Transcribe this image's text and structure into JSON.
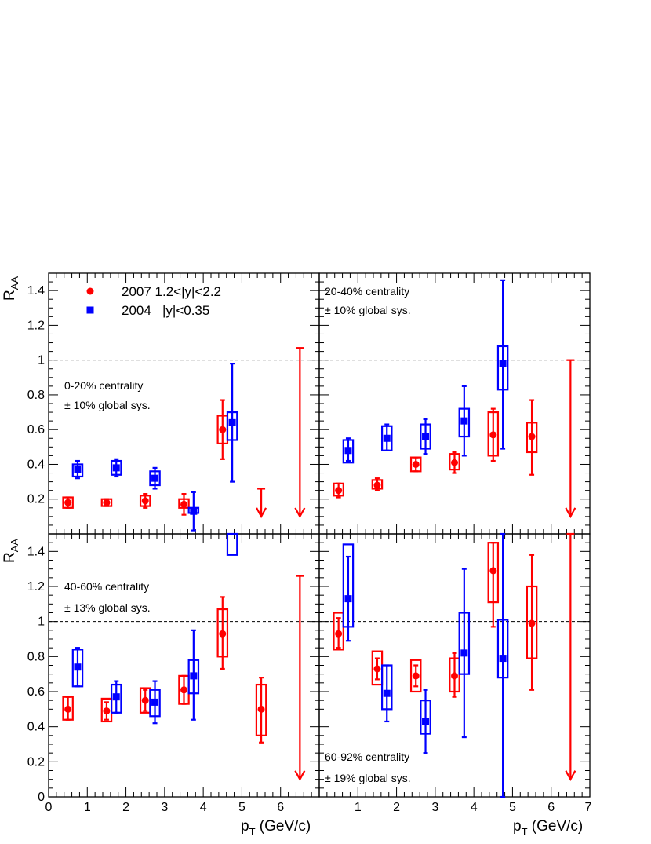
{
  "chart_data": {
    "type": "scatter",
    "colors": {
      "series_2007": "#ff0000",
      "series_2004": "#0000ff",
      "frame": "#000000"
    },
    "legend": {
      "placement": "top-left of first panel",
      "entries": [
        {
          "label": "2007 1.2<|y|<2.2",
          "marker": "circle",
          "color": "#ff0000"
        },
        {
          "label": "2004   |y|<0.35",
          "marker": "square",
          "color": "#0000ff"
        }
      ]
    },
    "ylabel": {
      "main": "R",
      "sub": "AA"
    },
    "xlabel": {
      "main": "p",
      "sub": "T",
      "unit": " (GeV/c)"
    },
    "reference_line": 1,
    "panels": [
      {
        "id": "top-left",
        "centrality": "0-20% centrality",
        "global_sys": "± 10% global sys.",
        "xlim": [
          0,
          7
        ],
        "ylim": [
          0,
          1.5
        ],
        "x_ticks": [],
        "y_ticks": [
          "0.2",
          "0.4",
          "0.6",
          "0.8",
          "1",
          "1.2",
          "1.4"
        ],
        "series_2007": [
          {
            "x": 0.5,
            "y": 0.18,
            "lo": 0.15,
            "hi": 0.21,
            "box": [
              0.15,
              0.21
            ],
            "box_w": 0.25
          },
          {
            "x": 1.5,
            "y": 0.18,
            "lo": 0.16,
            "hi": 0.2,
            "box": [
              0.16,
              0.2
            ],
            "box_w": 0.25
          },
          {
            "x": 2.5,
            "y": 0.19,
            "lo": 0.15,
            "hi": 0.23,
            "box": [
              0.16,
              0.22
            ],
            "box_w": 0.25
          },
          {
            "x": 3.5,
            "y": 0.17,
            "lo": 0.11,
            "hi": 0.23,
            "box": [
              0.15,
              0.2
            ],
            "box_w": 0.25
          },
          {
            "x": 4.5,
            "y": 0.6,
            "lo": 0.43,
            "hi": 0.77,
            "box": [
              0.52,
              0.68
            ],
            "box_w": 0.25
          }
        ],
        "series_2004": [
          {
            "x": 0.75,
            "y": 0.37,
            "lo": 0.32,
            "hi": 0.42,
            "box": [
              0.33,
              0.4
            ],
            "box_w": 0.25
          },
          {
            "x": 1.75,
            "y": 0.38,
            "lo": 0.33,
            "hi": 0.43,
            "box": [
              0.34,
              0.42
            ],
            "box_w": 0.25
          },
          {
            "x": 2.75,
            "y": 0.32,
            "lo": 0.26,
            "hi": 0.38,
            "box": [
              0.28,
              0.36
            ],
            "box_w": 0.25
          },
          {
            "x": 3.75,
            "y": 0.13,
            "lo": 0.02,
            "hi": 0.24,
            "box": [
              0.12,
              0.15
            ],
            "box_w": 0.25
          },
          {
            "x": 4.75,
            "y": 0.64,
            "lo": 0.3,
            "hi": 0.98,
            "box": [
              0.54,
              0.7
            ],
            "box_w": 0.25
          }
        ],
        "limits_2007": [
          {
            "x": 5.5,
            "top": 0.26,
            "bottom": 0.1
          },
          {
            "x": 6.5,
            "top": 1.07,
            "bottom": 0.1
          }
        ]
      },
      {
        "id": "top-right",
        "centrality": "20-40% centrality",
        "global_sys": "± 10% global sys.",
        "xlim": [
          0,
          7
        ],
        "ylim": [
          0,
          1.5
        ],
        "x_ticks": [],
        "y_ticks": [],
        "series_2007": [
          {
            "x": 0.5,
            "y": 0.25,
            "lo": 0.21,
            "hi": 0.29,
            "box": [
              0.22,
              0.29
            ],
            "box_w": 0.25
          },
          {
            "x": 1.5,
            "y": 0.28,
            "lo": 0.25,
            "hi": 0.32,
            "box": [
              0.26,
              0.31
            ],
            "box_w": 0.25
          },
          {
            "x": 2.5,
            "y": 0.4,
            "lo": 0.36,
            "hi": 0.44,
            "box": [
              0.36,
              0.44
            ],
            "box_w": 0.25
          },
          {
            "x": 3.5,
            "y": 0.41,
            "lo": 0.35,
            "hi": 0.47,
            "box": [
              0.37,
              0.46
            ],
            "box_w": 0.25
          },
          {
            "x": 4.5,
            "y": 0.57,
            "lo": 0.42,
            "hi": 0.72,
            "box": [
              0.45,
              0.7
            ],
            "box_w": 0.25
          },
          {
            "x": 5.5,
            "y": 0.56,
            "lo": 0.34,
            "hi": 0.77,
            "box": [
              0.47,
              0.64
            ],
            "box_w": 0.25
          }
        ],
        "series_2004": [
          {
            "x": 0.75,
            "y": 0.48,
            "lo": 0.42,
            "hi": 0.55,
            "box": [
              0.41,
              0.54
            ],
            "box_w": 0.25
          },
          {
            "x": 1.75,
            "y": 0.55,
            "lo": 0.48,
            "hi": 0.63,
            "box": [
              0.48,
              0.62
            ],
            "box_w": 0.25
          },
          {
            "x": 2.75,
            "y": 0.56,
            "lo": 0.46,
            "hi": 0.66,
            "box": [
              0.49,
              0.63
            ],
            "box_w": 0.25
          },
          {
            "x": 3.75,
            "y": 0.65,
            "lo": 0.45,
            "hi": 0.85,
            "box": [
              0.56,
              0.72
            ],
            "box_w": 0.25
          },
          {
            "x": 4.75,
            "y": 0.98,
            "lo": 0.49,
            "hi": 1.46,
            "box": [
              0.83,
              1.08
            ],
            "box_w": 0.25
          }
        ],
        "limits_2007": [
          {
            "x": 6.5,
            "top": 1.0,
            "bottom": 0.1
          }
        ]
      },
      {
        "id": "bottom-left",
        "centrality": "40-60% centrality",
        "global_sys": "± 13% global sys.",
        "xlim": [
          0,
          7
        ],
        "ylim": [
          0,
          1.5
        ],
        "x_ticks": [
          "0",
          "1",
          "2",
          "3",
          "4",
          "5",
          "6"
        ],
        "y_ticks": [
          "0",
          "0.2",
          "0.4",
          "0.6",
          "0.8",
          "1",
          "1.2",
          "1.4"
        ],
        "series_2007": [
          {
            "x": 0.5,
            "y": 0.5,
            "lo": 0.44,
            "hi": 0.57,
            "box": [
              0.44,
              0.57
            ],
            "box_w": 0.25
          },
          {
            "x": 1.5,
            "y": 0.49,
            "lo": 0.44,
            "hi": 0.54,
            "box": [
              0.43,
              0.56
            ],
            "box_w": 0.25
          },
          {
            "x": 2.5,
            "y": 0.55,
            "lo": 0.49,
            "hi": 0.61,
            "box": [
              0.48,
              0.62
            ],
            "box_w": 0.25
          },
          {
            "x": 3.5,
            "y": 0.61,
            "lo": 0.53,
            "hi": 0.69,
            "box": [
              0.53,
              0.69
            ],
            "box_w": 0.25
          },
          {
            "x": 4.5,
            "y": 0.93,
            "lo": 0.73,
            "hi": 1.14,
            "box": [
              0.8,
              1.07
            ],
            "box_w": 0.25
          },
          {
            "x": 5.5,
            "y": 0.5,
            "lo": 0.31,
            "hi": 0.68,
            "box": [
              0.35,
              0.64
            ],
            "box_w": 0.25
          }
        ],
        "series_2004": [
          {
            "x": 0.75,
            "y": 0.74,
            "lo": 0.63,
            "hi": 0.85,
            "box": [
              0.63,
              0.84
            ],
            "box_w": 0.25
          },
          {
            "x": 1.75,
            "y": 0.57,
            "lo": 0.48,
            "hi": 0.66,
            "box": [
              0.48,
              0.64
            ],
            "box_w": 0.25
          },
          {
            "x": 2.75,
            "y": 0.54,
            "lo": 0.42,
            "hi": 0.66,
            "box": [
              0.46,
              0.61
            ],
            "box_w": 0.25
          },
          {
            "x": 3.75,
            "y": 0.69,
            "lo": 0.44,
            "hi": 0.95,
            "box": [
              0.59,
              0.78
            ],
            "box_w": 0.25
          },
          {
            "x": 4.75,
            "y": null,
            "lo": null,
            "hi": null,
            "box": [
              1.38,
              1.5
            ],
            "box_w": 0.25
          }
        ],
        "limits_2007": [
          {
            "x": 6.5,
            "top": 1.26,
            "bottom": 0.1
          }
        ]
      },
      {
        "id": "bottom-right",
        "centrality": "60-92% centrality",
        "global_sys": "± 19% global sys.",
        "xlim": [
          0,
          7
        ],
        "ylim": [
          0,
          1.5
        ],
        "x_ticks": [
          "1",
          "2",
          "3",
          "4",
          "5",
          "6",
          "7"
        ],
        "y_ticks": [],
        "series_2007": [
          {
            "x": 0.5,
            "y": 0.93,
            "lo": 0.85,
            "hi": 1.02,
            "box": [
              0.84,
              1.05
            ],
            "box_w": 0.25
          },
          {
            "x": 1.5,
            "y": 0.73,
            "lo": 0.67,
            "hi": 0.79,
            "box": [
              0.64,
              0.83
            ],
            "box_w": 0.25
          },
          {
            "x": 2.5,
            "y": 0.69,
            "lo": 0.63,
            "hi": 0.75,
            "box": [
              0.6,
              0.78
            ],
            "box_w": 0.25
          },
          {
            "x": 3.5,
            "y": 0.69,
            "lo": 0.57,
            "hi": 0.82,
            "box": [
              0.6,
              0.79
            ],
            "box_w": 0.25
          },
          {
            "x": 4.5,
            "y": 1.29,
            "lo": 0.97,
            "hi": 1.45,
            "box": [
              1.11,
              1.45
            ],
            "box_w": 0.25
          },
          {
            "x": 5.5,
            "y": 0.99,
            "lo": 0.61,
            "hi": 1.38,
            "box": [
              0.79,
              1.2
            ],
            "box_w": 0.25
          }
        ],
        "series_2004": [
          {
            "x": 0.75,
            "y": 1.13,
            "lo": 0.89,
            "hi": 1.37,
            "box": [
              0.97,
              1.44
            ],
            "box_w": 0.25
          },
          {
            "x": 1.75,
            "y": 0.59,
            "lo": 0.43,
            "hi": 0.75,
            "box": [
              0.5,
              0.75
            ],
            "box_w": 0.25
          },
          {
            "x": 2.75,
            "y": 0.43,
            "lo": 0.25,
            "hi": 0.61,
            "box": [
              0.36,
              0.55
            ],
            "box_w": 0.25
          },
          {
            "x": 3.75,
            "y": 0.82,
            "lo": 0.34,
            "hi": 1.3,
            "box": [
              0.7,
              1.05
            ],
            "box_w": 0.25
          },
          {
            "x": 4.75,
            "y": 0.79,
            "lo": 0.0,
            "hi": 1.5,
            "box": [
              0.68,
              1.01
            ],
            "box_w": 0.25
          }
        ],
        "limits_2007": [
          {
            "x": 6.5,
            "top": 1.5,
            "bottom": 0.1
          }
        ]
      }
    ]
  }
}
